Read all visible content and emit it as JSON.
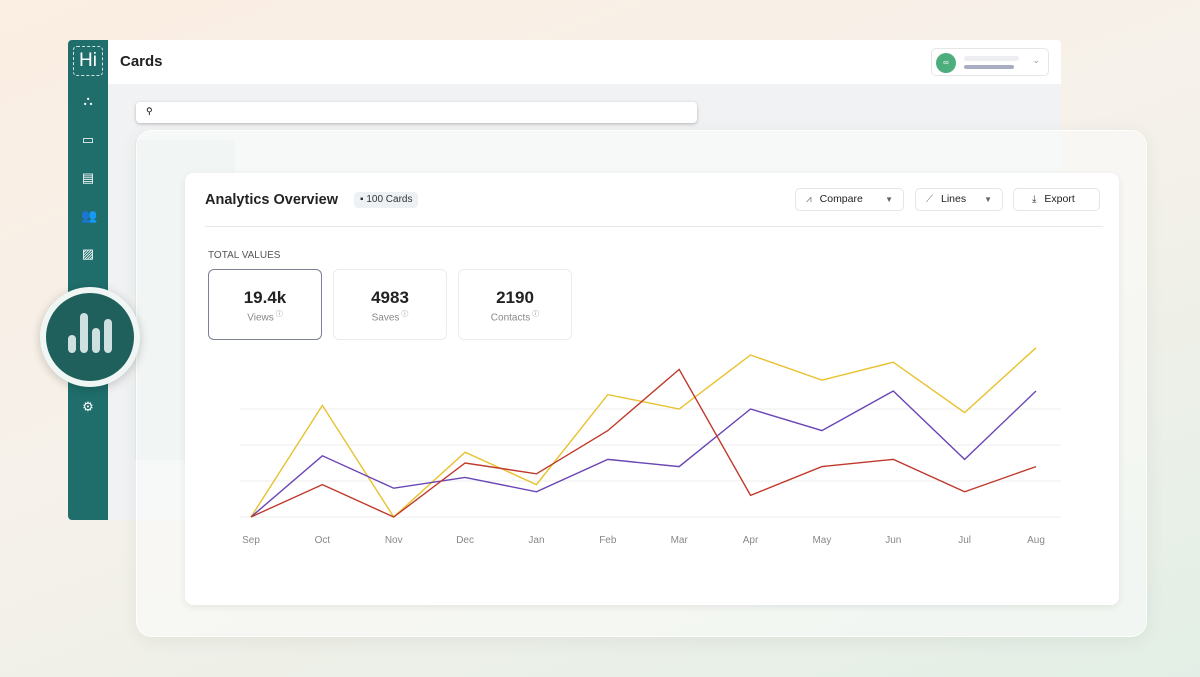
{
  "app": {
    "logo": "Hi",
    "title": "Cards",
    "search_placeholder": "",
    "sidebar": [
      {
        "icon": "org-chart-icon"
      },
      {
        "icon": "card-icon"
      },
      {
        "icon": "cards-stack-icon"
      },
      {
        "icon": "contacts-icon"
      },
      {
        "icon": "image-icon"
      },
      {
        "icon": "analytics-icon",
        "active": true
      },
      {
        "icon": "gear-icon"
      }
    ],
    "user": {
      "avatar_icon": "link-icon"
    }
  },
  "analytics": {
    "title": "Analytics Overview",
    "badge": "100 Cards",
    "buttons": {
      "compare": "Compare",
      "lines": "Lines",
      "export": "Export"
    },
    "totals_label": "TOTAL VALUES",
    "stats": [
      {
        "value": "19.4k",
        "label": "Views",
        "selected": true
      },
      {
        "value": "4983",
        "label": "Saves"
      },
      {
        "value": "2190",
        "label": "Contacts"
      }
    ]
  },
  "colors": {
    "brand": "#1f6e6b",
    "yellow": "#e8c12c",
    "purple": "#6a45b5",
    "red": "#c0392b"
  },
  "chart_data": {
    "type": "line",
    "categories": [
      "Sep",
      "Oct",
      "Nov",
      "Dec",
      "Jan",
      "Feb",
      "Mar",
      "Apr",
      "May",
      "Jun",
      "Jul",
      "Aug"
    ],
    "ylim": [
      0,
      5
    ],
    "grid": true,
    "series": [
      {
        "color": "#e8c12c",
        "values": [
          0,
          3.1,
          0,
          1.8,
          0.9,
          3.4,
          3.0,
          4.5,
          3.8,
          4.3,
          2.9,
          4.7
        ]
      },
      {
        "color": "#6a45b5",
        "values": [
          0,
          1.7,
          0.8,
          1.1,
          0.7,
          1.6,
          1.4,
          3.0,
          2.4,
          3.5,
          1.6,
          3.5
        ]
      },
      {
        "color": "#c0392b",
        "values": [
          0,
          0.9,
          0,
          1.5,
          1.2,
          2.4,
          4.1,
          0.6,
          1.4,
          1.6,
          0.7,
          1.4
        ]
      }
    ]
  }
}
